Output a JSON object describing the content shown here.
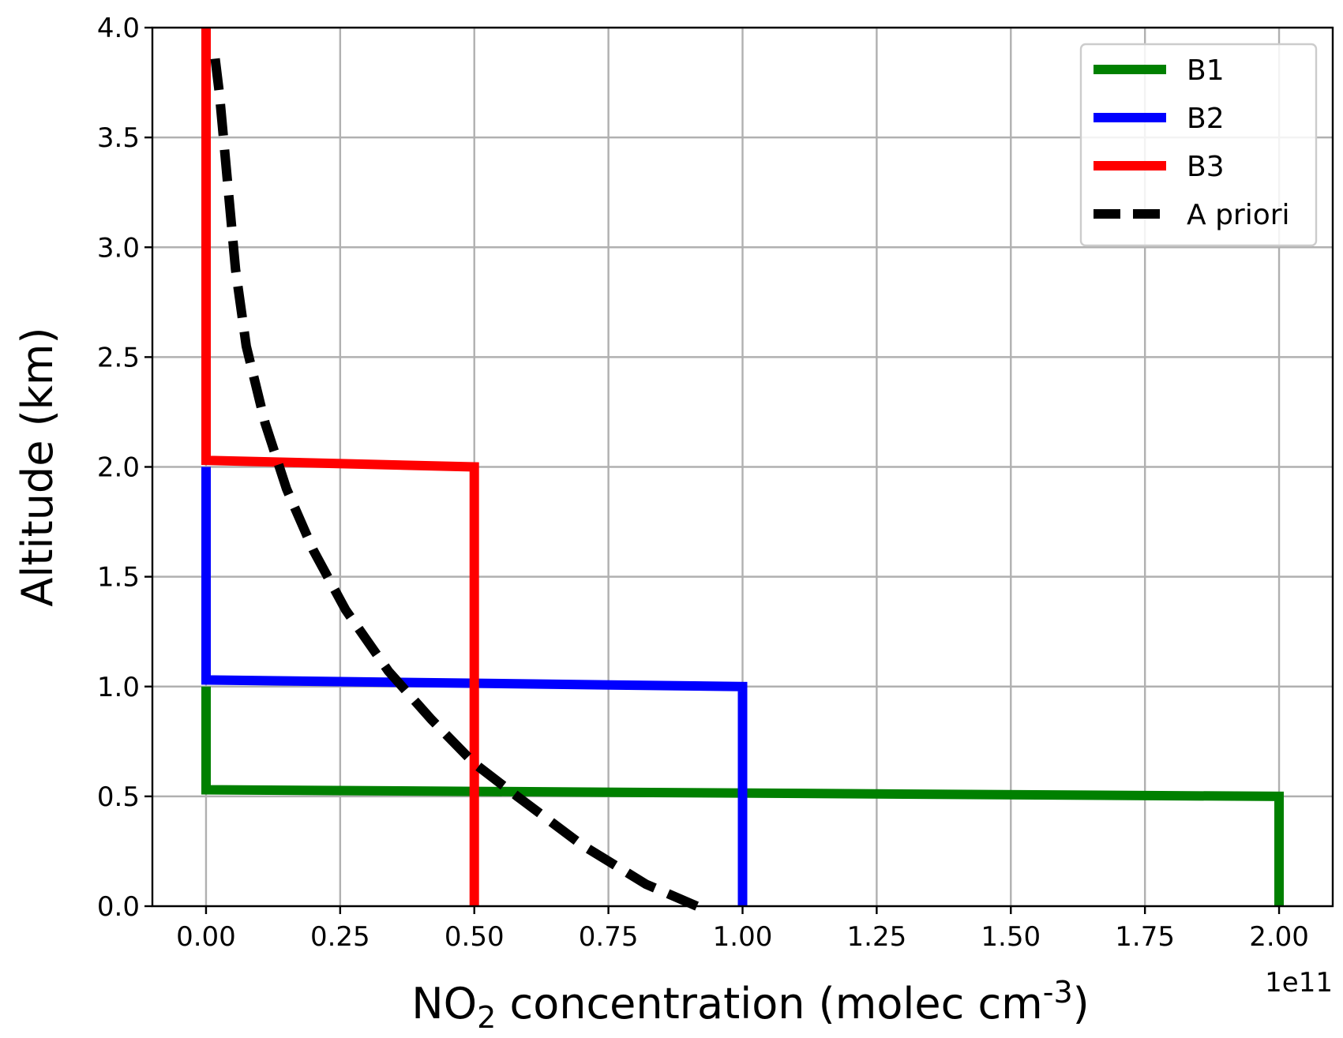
{
  "chart_data": {
    "type": "line",
    "xlabel": {
      "main": "NO",
      "sub": "2",
      "mid": " concentration (molec cm",
      "sup": "-3",
      "end": ")"
    },
    "ylabel": "Altitude (km)",
    "x_offset_label": "1e11",
    "xlim": [
      -0.1,
      2.1
    ],
    "ylim": [
      0,
      4
    ],
    "x_ticks": [
      0.0,
      0.25,
      0.5,
      0.75,
      1.0,
      1.25,
      1.5,
      1.75,
      2.0
    ],
    "x_tick_labels": [
      "0.00",
      "0.25",
      "0.50",
      "0.75",
      "1.00",
      "1.25",
      "1.50",
      "1.75",
      "2.00"
    ],
    "y_ticks": [
      0.0,
      0.5,
      1.0,
      1.5,
      2.0,
      2.5,
      3.0,
      3.5,
      4.0
    ],
    "y_tick_labels": [
      "0.0",
      "0.5",
      "1.0",
      "1.5",
      "2.0",
      "2.5",
      "3.0",
      "3.5",
      "4.0"
    ],
    "grid": true,
    "legend_position": "top-right",
    "series": [
      {
        "name": "B1",
        "color": "#008000",
        "dash": "solid",
        "x": [
          2.0,
          2.0,
          0.0,
          0.0
        ],
        "y": [
          0.0,
          0.5,
          0.53,
          1.0
        ]
      },
      {
        "name": "B2",
        "color": "#0000ff",
        "dash": "solid",
        "x": [
          1.0,
          1.0,
          0.0,
          0.0
        ],
        "y": [
          0.0,
          1.0,
          1.03,
          2.0
        ]
      },
      {
        "name": "B3",
        "color": "#ff0000",
        "dash": "solid",
        "x": [
          0.5,
          0.5,
          0.0,
          0.0
        ],
        "y": [
          0.0,
          2.0,
          2.03,
          4.0
        ]
      },
      {
        "name": "A priori",
        "color": "#000000",
        "dash": "dashed",
        "x": [
          0.915,
          0.82,
          0.7,
          0.58,
          0.5,
          0.42,
          0.34,
          0.26,
          0.2,
          0.15,
          0.11,
          0.075,
          0.055,
          0.04,
          0.025,
          0.015
        ],
        "y": [
          0.0,
          0.1,
          0.28,
          0.5,
          0.65,
          0.85,
          1.07,
          1.35,
          1.62,
          1.9,
          2.2,
          2.55,
          2.9,
          3.3,
          3.7,
          3.9
        ]
      }
    ]
  }
}
